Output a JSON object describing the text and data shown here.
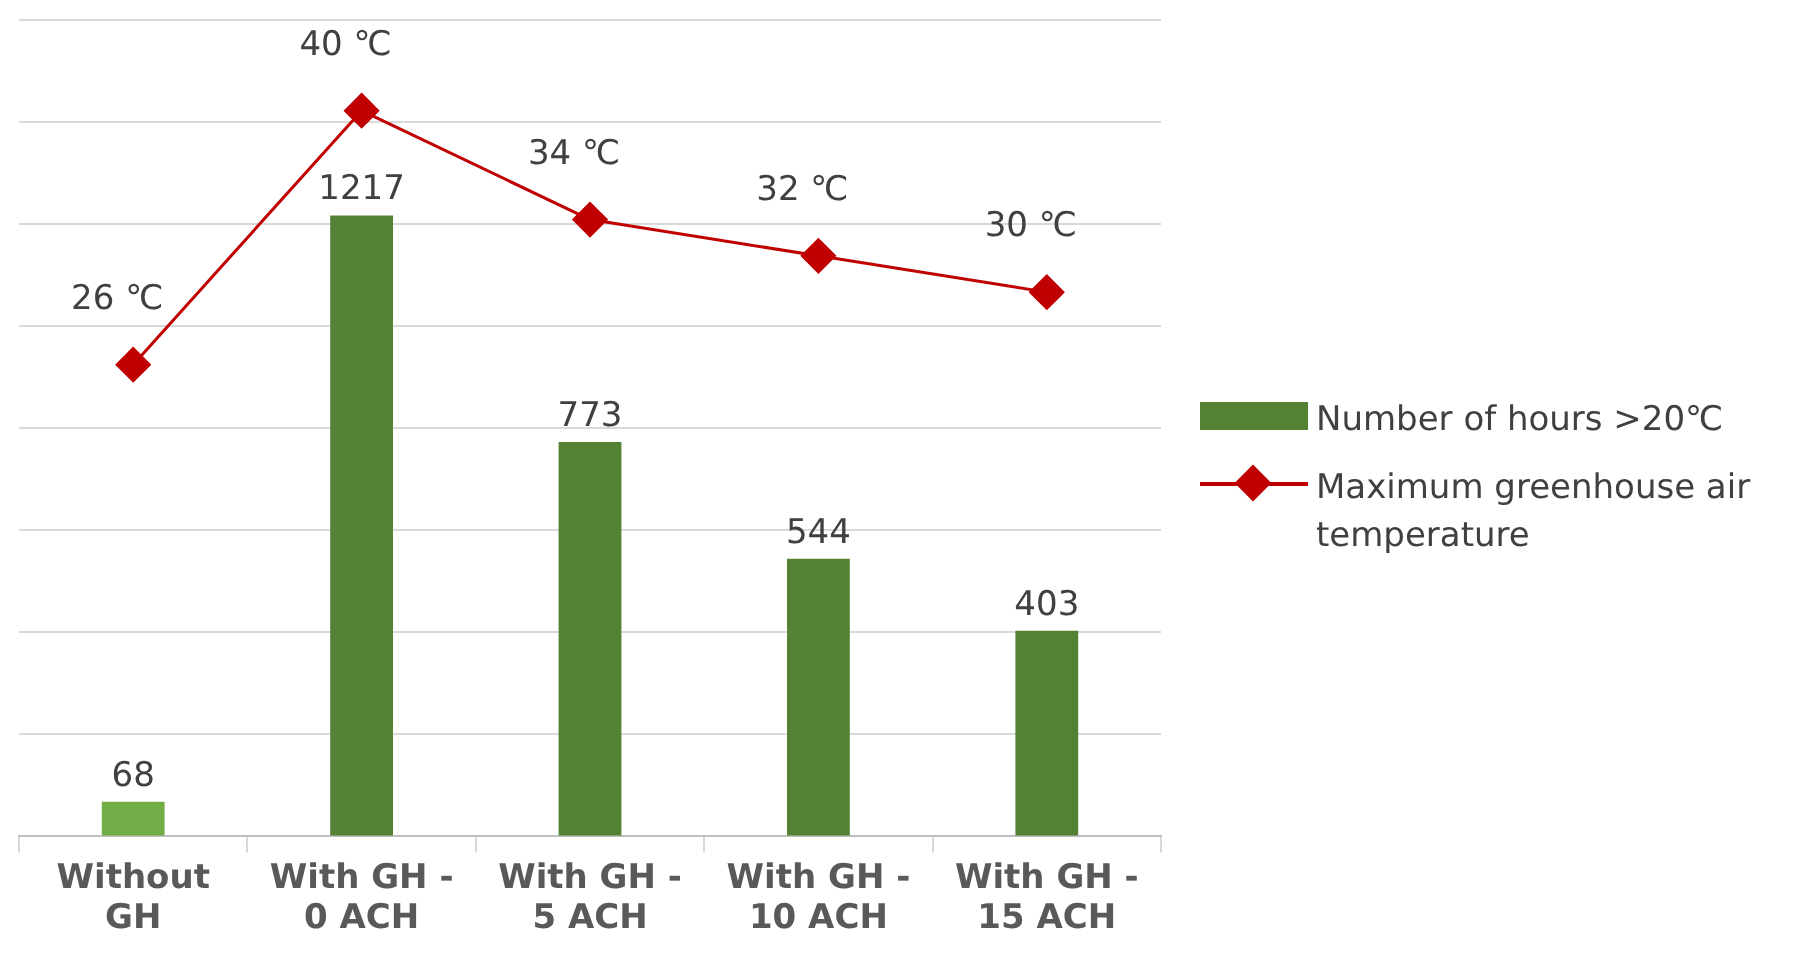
{
  "chart_data": {
    "type": "bar",
    "categories": [
      "Without GH",
      "With GH - 0 ACH",
      "With GH - 5 ACH",
      "With GH - 10 ACH",
      "With GH - 15 ACH"
    ],
    "series": [
      {
        "name": "Number of hours >20℃",
        "colors": [
          "#70ad47",
          "#548235",
          "#548235",
          "#548235",
          "#548235"
        ],
        "color": "#548235",
        "values": [
          68,
          1217,
          773,
          544,
          403
        ],
        "value_labels": [
          "68",
          "1217",
          "773",
          "544",
          "403"
        ]
      },
      {
        "name": "Maximum greenhouse air temperature",
        "type": "line",
        "axis": "y2",
        "color": "#c00000",
        "values": [
          26,
          40,
          34,
          32,
          30
        ],
        "value_labels": [
          "26 ℃",
          "40 ℃",
          "34 ℃",
          "32 ℃",
          "30 ℃"
        ],
        "marker": "diamond"
      }
    ],
    "ylim": [
      0,
      1600
    ],
    "yticks": [
      0,
      200,
      400,
      600,
      800,
      1000,
      1200,
      1400,
      1600
    ],
    "y2lim": [
      0,
      45
    ],
    "grid": "y",
    "legend": "right",
    "tick_labels": "x",
    "line_style": "solid"
  }
}
